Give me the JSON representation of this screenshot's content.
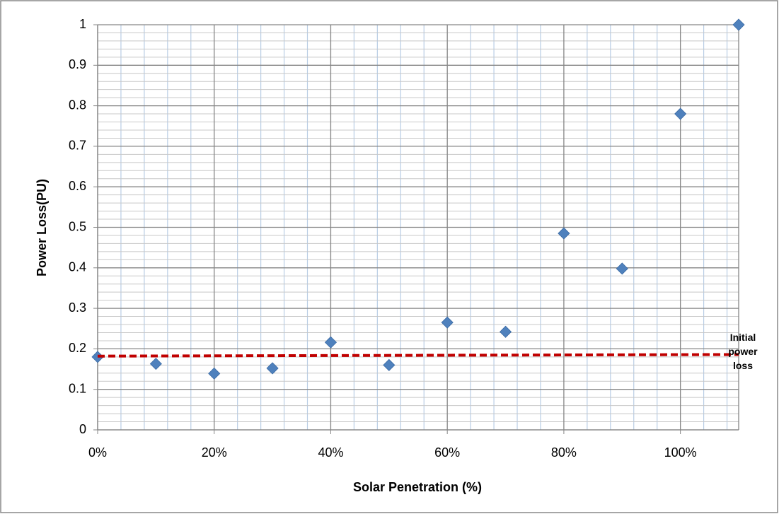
{
  "chart_data": {
    "type": "scatter",
    "x_label": "Solar Penetration (%)",
    "y_label": "Power Loss(PU)",
    "x": [
      0,
      10,
      20,
      30,
      40,
      50,
      60,
      70,
      80,
      90,
      100,
      110
    ],
    "series": [
      {
        "color": "#4f81bd",
        "values": [
          0.18,
          0.163,
          0.139,
          0.152,
          0.216,
          0.16,
          0.265,
          0.242,
          0.485,
          0.398,
          0.78,
          1.0
        ]
      },
      {
        "name": "Initial power loss",
        "type": "line",
        "dashed": true,
        "color": "#c00000",
        "x": [
          0,
          110
        ],
        "values": [
          0.182,
          0.186
        ]
      }
    ],
    "xlim": [
      0,
      110
    ],
    "xticks": [
      {
        "value": 0,
        "label": "0%"
      },
      {
        "value": 20,
        "label": "20%"
      },
      {
        "value": 40,
        "label": "40%"
      },
      {
        "value": 60,
        "label": "60%"
      },
      {
        "value": 80,
        "label": "80%"
      },
      {
        "value": 100,
        "label": "100%"
      }
    ],
    "ylim": [
      0,
      1
    ],
    "yticks": [
      0,
      0.1,
      0.2,
      0.3,
      0.4,
      0.5,
      0.6,
      0.7,
      0.8,
      0.9,
      1
    ],
    "grid": true,
    "minor_grid": true
  }
}
